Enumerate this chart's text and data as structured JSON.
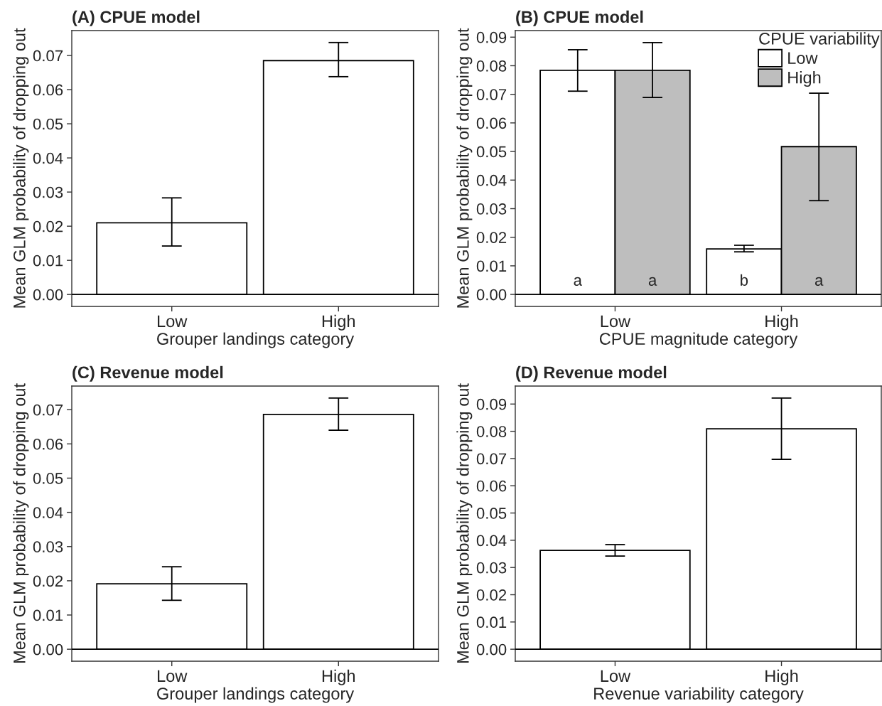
{
  "chart_data": [
    {
      "type": "bar",
      "title": "(A) CPUE model",
      "xlabel": "Grouper landings category",
      "ylabel": "Mean GLM probability of dropping out",
      "categories": [
        "Low",
        "High"
      ],
      "series": [
        {
          "color": "#ffffff",
          "values": [
            0.021,
            0.0685
          ],
          "errors": [
            [
              0.0142,
              0.0283
            ],
            [
              0.0638,
              0.0738
            ]
          ]
        }
      ],
      "ylim": [
        -0.0035,
        0.0773
      ],
      "yticks": [
        {
          "value": 0,
          "label": "0.00"
        },
        {
          "value": 0.01,
          "label": "0.01"
        },
        {
          "value": 0.02,
          "label": "0.02"
        },
        {
          "value": 0.03,
          "label": "0.03"
        },
        {
          "value": 0.04,
          "label": "0.04"
        },
        {
          "value": 0.05,
          "label": "0.05"
        },
        {
          "value": 0.06,
          "label": "0.06"
        },
        {
          "value": 0.07,
          "label": "0.07"
        }
      ],
      "ref_lines": [
        {
          "axis": "y",
          "value": 0,
          "label": null,
          "color": "#000000"
        }
      ],
      "grid": false,
      "legend": false
    },
    {
      "type": "bar",
      "title": "(B) CPUE model",
      "xlabel": "CPUE magnitude category",
      "ylabel": "Mean GLM probability of dropping out",
      "categories": [
        "Low",
        "High"
      ],
      "legend_title": "CPUE variability",
      "series": [
        {
          "name": "Low",
          "color": "#ffffff",
          "values": [
            0.0784,
            0.0159
          ],
          "errors": [
            [
              0.0711,
              0.0856
            ],
            [
              0.0149,
              0.0172
            ]
          ]
        },
        {
          "name": "High",
          "color": "#bebebe",
          "values": [
            0.0784,
            0.0517
          ],
          "errors": [
            [
              0.0689,
              0.0881
            ],
            [
              0.0328,
              0.0704
            ]
          ]
        }
      ],
      "annotations": [
        {
          "text": "a",
          "x": "Low",
          "y": 0.0045
        },
        {
          "text": "a",
          "x": "Low",
          "y": 0.0045
        },
        {
          "text": "b",
          "x": "High",
          "y": 0.0045
        },
        {
          "text": "a",
          "x": "High",
          "y": 0.0045
        }
      ],
      "ylim": [
        -0.0042,
        0.0923
      ],
      "yticks": [
        {
          "value": 0,
          "label": "0.00"
        },
        {
          "value": 0.01,
          "label": "0.01"
        },
        {
          "value": 0.02,
          "label": "0.02"
        },
        {
          "value": 0.03,
          "label": "0.03"
        },
        {
          "value": 0.04,
          "label": "0.04"
        },
        {
          "value": 0.05,
          "label": "0.05"
        },
        {
          "value": 0.06,
          "label": "0.06"
        },
        {
          "value": 0.07,
          "label": "0.07"
        },
        {
          "value": 0.08,
          "label": "0.08"
        },
        {
          "value": 0.09,
          "label": "0.09"
        }
      ],
      "ref_lines": [
        {
          "axis": "y",
          "value": 0,
          "label": null,
          "color": "#000000"
        }
      ],
      "grid": false,
      "legend": "top right"
    },
    {
      "type": "bar",
      "title": "(C) Revenue model",
      "xlabel": "Grouper landings category",
      "ylabel": "Mean GLM probability of dropping out",
      "categories": [
        "Low",
        "High"
      ],
      "series": [
        {
          "color": "#ffffff",
          "values": [
            0.0191,
            0.0686
          ],
          "errors": [
            [
              0.0143,
              0.0241
            ],
            [
              0.064,
              0.0734
            ]
          ]
        }
      ],
      "ylim": [
        -0.0035,
        0.0769
      ],
      "yticks": [
        {
          "value": 0,
          "label": "0.00"
        },
        {
          "value": 0.01,
          "label": "0.01"
        },
        {
          "value": 0.02,
          "label": "0.02"
        },
        {
          "value": 0.03,
          "label": "0.03"
        },
        {
          "value": 0.04,
          "label": "0.04"
        },
        {
          "value": 0.05,
          "label": "0.05"
        },
        {
          "value": 0.06,
          "label": "0.06"
        },
        {
          "value": 0.07,
          "label": "0.07"
        }
      ],
      "ref_lines": [
        {
          "axis": "y",
          "value": 0,
          "label": null,
          "color": "#000000"
        }
      ],
      "grid": false,
      "legend": false
    },
    {
      "type": "bar",
      "title": "(D) Revenue model",
      "xlabel": "Revenue variability category",
      "ylabel": "Mean GLM probability of dropping out",
      "categories": [
        "Low",
        "High"
      ],
      "series": [
        {
          "color": "#ffffff",
          "values": [
            0.0363,
            0.0809
          ],
          "errors": [
            [
              0.0342,
              0.0384
            ],
            [
              0.0697,
              0.0922
            ]
          ]
        }
      ],
      "ylim": [
        -0.0044,
        0.0966
      ],
      "yticks": [
        {
          "value": 0,
          "label": "0.00"
        },
        {
          "value": 0.01,
          "label": "0.01"
        },
        {
          "value": 0.02,
          "label": "0.02"
        },
        {
          "value": 0.03,
          "label": "0.03"
        },
        {
          "value": 0.04,
          "label": "0.04"
        },
        {
          "value": 0.05,
          "label": "0.05"
        },
        {
          "value": 0.06,
          "label": "0.06"
        },
        {
          "value": 0.07,
          "label": "0.07"
        },
        {
          "value": 0.08,
          "label": "0.08"
        },
        {
          "value": 0.09,
          "label": "0.09"
        }
      ],
      "ref_lines": [
        {
          "axis": "y",
          "value": 0,
          "label": null,
          "color": "#000000"
        }
      ],
      "grid": false,
      "legend": false
    }
  ]
}
